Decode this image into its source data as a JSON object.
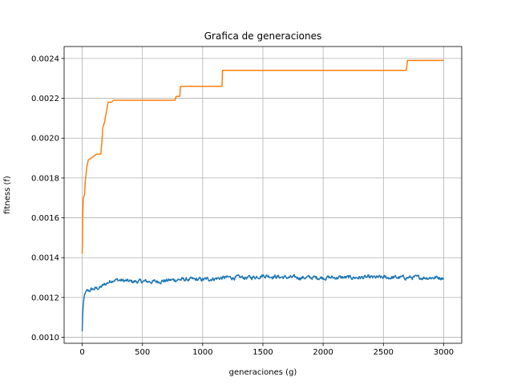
{
  "chart_data": {
    "type": "line",
    "title": "Grafica de generaciones",
    "xlabel": "generaciones (g)",
    "ylabel": "fitness (f)",
    "xlim": [
      -150,
      3150
    ],
    "ylim": [
      0.00097,
      0.00246
    ],
    "xticks": [
      0,
      500,
      1000,
      1500,
      2000,
      2500,
      3000
    ],
    "xtick_labels": [
      "0",
      "500",
      "1000",
      "1500",
      "2000",
      "2500",
      "3000"
    ],
    "yticks": [
      0.001,
      0.0012,
      0.0014,
      0.0016,
      0.0018,
      0.002,
      0.0022,
      0.0024
    ],
    "ytick_labels": [
      "0.0010",
      "0.0012",
      "0.0014",
      "0.0016",
      "0.0018",
      "0.0020",
      "0.0022",
      "0.0024"
    ],
    "grid": true,
    "series": [
      {
        "color": "#1f77b4",
        "style": "noisy",
        "points": [
          [
            0,
            0.00103
          ],
          [
            2,
            0.00108
          ],
          [
            5,
            0.00113
          ],
          [
            10,
            0.00117
          ],
          [
            15,
            0.0012
          ],
          [
            25,
            0.00122
          ],
          [
            40,
            0.00123
          ],
          [
            80,
            0.00124
          ],
          [
            150,
            0.00125
          ],
          [
            200,
            0.00127
          ],
          [
            260,
            0.00129
          ],
          [
            400,
            0.00128
          ],
          [
            600,
            0.00128
          ],
          [
            800,
            0.00129
          ],
          [
            1000,
            0.00129
          ],
          [
            1200,
            0.0013
          ],
          [
            1400,
            0.0013
          ],
          [
            1500,
            0.00131
          ],
          [
            1700,
            0.0013
          ],
          [
            2000,
            0.0013
          ],
          [
            2500,
            0.0013
          ],
          [
            3000,
            0.0013
          ]
        ]
      },
      {
        "color": "#ff7f0e",
        "style": "step",
        "points": [
          [
            0,
            0.00142
          ],
          [
            3,
            0.00152
          ],
          [
            5,
            0.00163
          ],
          [
            10,
            0.0017
          ],
          [
            20,
            0.00172
          ],
          [
            25,
            0.00178
          ],
          [
            30,
            0.00181
          ],
          [
            40,
            0.00186
          ],
          [
            50,
            0.00189
          ],
          [
            75,
            0.0019
          ],
          [
            120,
            0.00192
          ],
          [
            155,
            0.00192
          ],
          [
            160,
            0.00196
          ],
          [
            165,
            0.00199
          ],
          [
            170,
            0.00205
          ],
          [
            185,
            0.00208
          ],
          [
            200,
            0.00213
          ],
          [
            215,
            0.00218
          ],
          [
            240,
            0.00218
          ],
          [
            260,
            0.00219
          ],
          [
            770,
            0.00219
          ],
          [
            780,
            0.00221
          ],
          [
            810,
            0.00221
          ],
          [
            815,
            0.00226
          ],
          [
            1160,
            0.00226
          ],
          [
            1165,
            0.00234
          ],
          [
            2690,
            0.00234
          ],
          [
            2700,
            0.00239
          ],
          [
            3000,
            0.00239
          ]
        ]
      }
    ]
  }
}
